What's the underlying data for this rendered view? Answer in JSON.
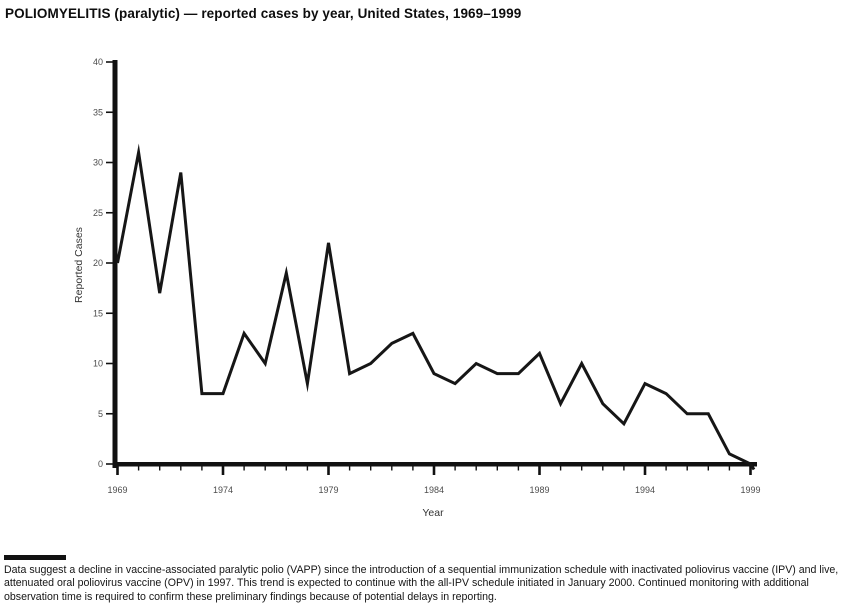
{
  "title": "POLIOMYELITIS (paralytic) — reported cases by year, United States, 1969–1999",
  "axes": {
    "ylabel": "Reported Cases",
    "xlabel": "Year"
  },
  "footnote": "Data suggest a decline in vaccine-associated paralytic polio (VAPP) since the introduction of a sequential immunization schedule with inactivated poliovirus vaccine (IPV) and live, attenuated oral poliovirus vaccine (OPV) in 1997. This trend is expected to continue with the all-IPV schedule initiated in January 2000. Continued monitoring with additional observation time is required to confirm these preliminary findings because of potential delays in reporting.",
  "colors": {
    "line": "#161616",
    "axis": "#111111",
    "tick_label": "#4d4d4d",
    "axis_label": "#333333",
    "background": "#ffffff"
  },
  "chart_data": {
    "type": "line",
    "title": "POLIOMYELITIS (paralytic) — reported cases by year, United States, 1969–1999",
    "xlabel": "Year",
    "ylabel": "Reported Cases",
    "x": [
      1969,
      1970,
      1971,
      1972,
      1973,
      1974,
      1975,
      1976,
      1977,
      1978,
      1979,
      1980,
      1981,
      1982,
      1983,
      1984,
      1985,
      1986,
      1987,
      1988,
      1989,
      1990,
      1991,
      1992,
      1993,
      1994,
      1995,
      1996,
      1997,
      1998,
      1999
    ],
    "values": [
      20,
      31,
      17,
      29,
      7,
      7,
      13,
      10,
      19,
      8,
      22,
      9,
      10,
      12,
      13,
      9,
      8,
      10,
      9,
      9,
      11,
      6,
      10,
      6,
      4,
      8,
      7,
      5,
      5,
      1,
      0
    ],
    "ylim": [
      0,
      40
    ],
    "yticks": [
      0,
      5,
      10,
      15,
      20,
      25,
      30,
      35,
      40
    ],
    "xticks": [
      1969,
      1974,
      1979,
      1984,
      1989,
      1994,
      1999
    ],
    "grid": false,
    "legend": null
  }
}
